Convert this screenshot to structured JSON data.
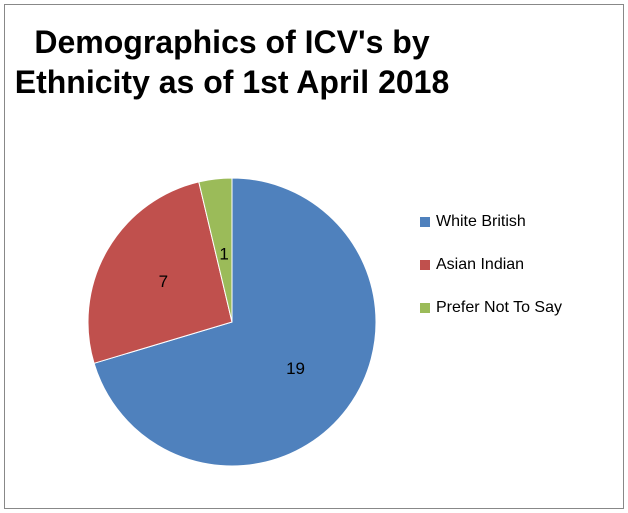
{
  "chart_data": {
    "type": "pie",
    "title": "Demographics of ICV's by Ethnicity as of 1st April 2018",
    "categories": [
      "White British",
      "Asian Indian",
      "Prefer Not To Say"
    ],
    "values": [
      19,
      7,
      1
    ],
    "colors": [
      "#4f81bd",
      "#c0504d",
      "#9bbb59"
    ]
  }
}
